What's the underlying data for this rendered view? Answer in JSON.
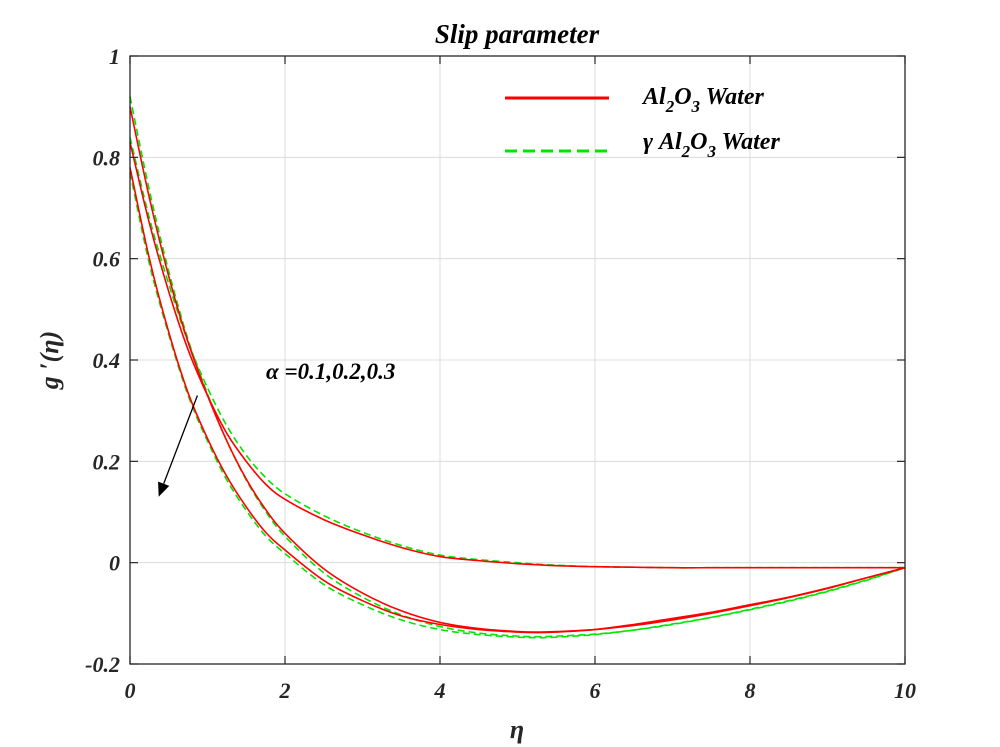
{
  "chart_data": {
    "type": "line",
    "title": "Slip parameter",
    "xlabel": "η",
    "ylabel": "g ′(η)",
    "xlim": [
      0,
      10
    ],
    "ylim": [
      -0.2,
      1
    ],
    "grid": true,
    "x_ticks": [
      0,
      2,
      4,
      6,
      8,
      10
    ],
    "x_tick_labels": [
      "0",
      "2",
      "4",
      "6",
      "8",
      "10"
    ],
    "y_ticks": [
      -0.2,
      0,
      0.2,
      0.4,
      0.6,
      0.8,
      1
    ],
    "y_tick_labels": [
      "-0.2",
      "0",
      "0.2",
      "0.4",
      "0.6",
      "0.8",
      "1"
    ],
    "legend": {
      "placement": "top-right",
      "entries": [
        {
          "base": "Al",
          "s1": "2",
          "mid": "O",
          "s2": "3",
          "tail": " Water",
          "color": "#ff0000",
          "style": "solid"
        },
        {
          "base": "γ Al",
          "s1": "2",
          "mid": "O",
          "s2": "3",
          "tail": " Water",
          "color": "#00e600",
          "style": "dashed"
        }
      ]
    },
    "annotation": {
      "text": "α =0.1,0.2,0.3",
      "arrow_from": [
        0.87,
        0.33
      ],
      "arrow_to": [
        0.37,
        0.13
      ]
    },
    "x": [
      0,
      0.25,
      0.5,
      0.75,
      1,
      1.25,
      1.5,
      1.75,
      2,
      2.5,
      3,
      3.5,
      4,
      4.5,
      5,
      5.25,
      5.5,
      6,
      6.5,
      7,
      7.5,
      8,
      8.5,
      9,
      9.5,
      10
    ],
    "series": [
      {
        "group": "Al2O3 Water",
        "color": "#ff0000",
        "style": "solid",
        "values": [
          0.83,
          0.67,
          0.535,
          0.42,
          0.33,
          0.255,
          0.2,
          0.155,
          0.125,
          0.085,
          0.055,
          0.03,
          0.012,
          0.004,
          -0.002,
          -0.004,
          -0.006,
          -0.008,
          -0.009,
          -0.01,
          -0.01,
          -0.01,
          -0.01,
          -0.01,
          -0.01,
          -0.01
        ]
      },
      {
        "group": "Al2O3 Water",
        "color": "#ff0000",
        "style": "solid",
        "values": [
          0.78,
          0.6,
          0.455,
          0.335,
          0.245,
          0.17,
          0.11,
          0.06,
          0.025,
          -0.035,
          -0.075,
          -0.105,
          -0.122,
          -0.132,
          -0.137,
          -0.138,
          -0.137,
          -0.132,
          -0.122,
          -0.11,
          -0.098,
          -0.083,
          -0.068,
          -0.05,
          -0.03,
          -0.01
        ]
      },
      {
        "group": "Al2O3 Water",
        "color": "#ff0000",
        "style": "solid",
        "values": [
          0.9,
          0.72,
          0.565,
          0.435,
          0.33,
          0.24,
          0.165,
          0.105,
          0.058,
          -0.012,
          -0.06,
          -0.095,
          -0.118,
          -0.13,
          -0.136,
          -0.137,
          -0.136,
          -0.132,
          -0.124,
          -0.113,
          -0.1,
          -0.085,
          -0.069,
          -0.051,
          -0.03,
          -0.01
        ]
      },
      {
        "group": "γ Al2O3 Water",
        "color": "#00e600",
        "style": "dashed",
        "values": [
          0.84,
          0.68,
          0.55,
          0.435,
          0.345,
          0.27,
          0.212,
          0.168,
          0.136,
          0.093,
          0.06,
          0.034,
          0.015,
          0.006,
          0.0,
          -0.003,
          -0.005,
          -0.008,
          -0.009,
          -0.01,
          -0.01,
          -0.01,
          -0.01,
          -0.01,
          -0.01,
          -0.01
        ]
      },
      {
        "group": "γ Al2O3 Water",
        "color": "#00e600",
        "style": "dashed",
        "values": [
          0.77,
          0.59,
          0.45,
          0.33,
          0.24,
          0.163,
          0.103,
          0.053,
          0.018,
          -0.043,
          -0.083,
          -0.113,
          -0.132,
          -0.142,
          -0.147,
          -0.148,
          -0.147,
          -0.142,
          -0.133,
          -0.121,
          -0.108,
          -0.093,
          -0.076,
          -0.057,
          -0.035,
          -0.01
        ]
      },
      {
        "group": "γ Al2O3 Water",
        "color": "#00e600",
        "style": "dashed",
        "values": [
          0.92,
          0.735,
          0.575,
          0.44,
          0.333,
          0.24,
          0.163,
          0.101,
          0.052,
          -0.02,
          -0.068,
          -0.103,
          -0.126,
          -0.139,
          -0.145,
          -0.146,
          -0.145,
          -0.141,
          -0.133,
          -0.122,
          -0.108,
          -0.092,
          -0.075,
          -0.056,
          -0.034,
          -0.01
        ]
      }
    ]
  }
}
